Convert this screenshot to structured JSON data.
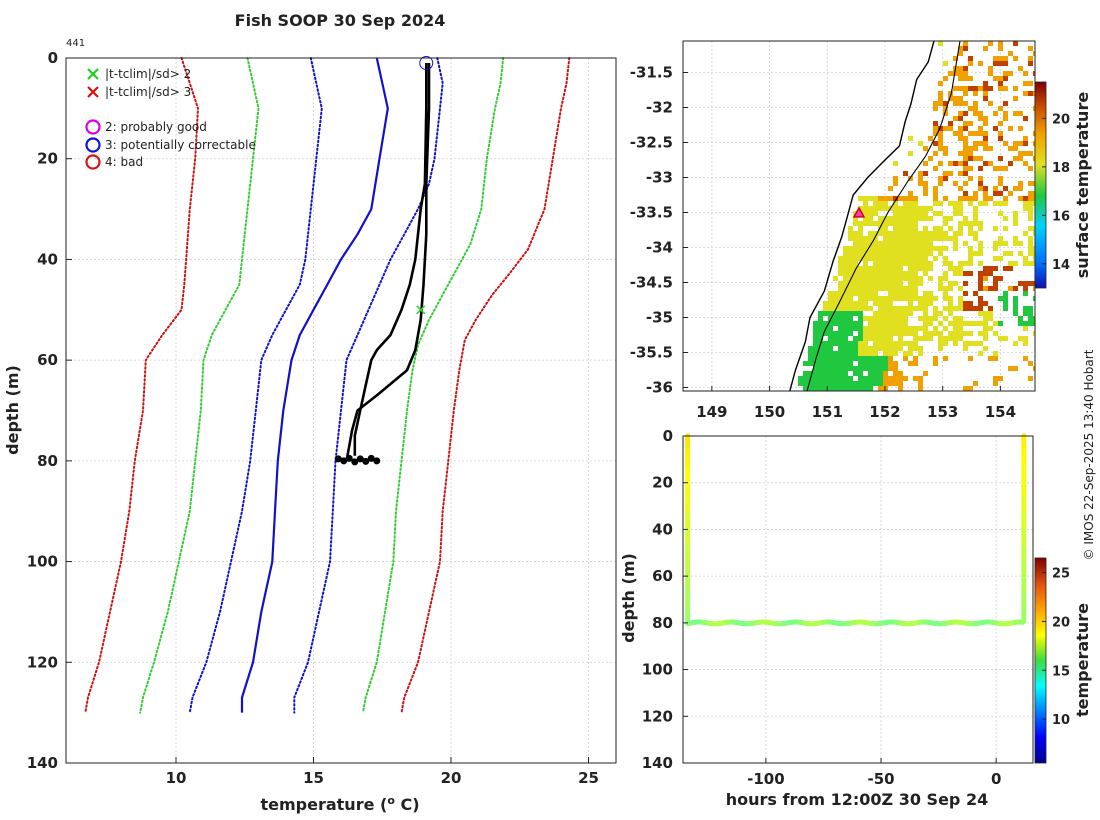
{
  "chart_data": [
    {
      "type": "line",
      "name": "profile",
      "title": "Fish SOOP 30 Sep 2024",
      "profile_id": "441",
      "xlabel": "temperature (",
      "xlabel_sup": "o",
      "xlabel_end": " C)",
      "ylabel": "depth (m)",
      "xlim": [
        6,
        26
      ],
      "ylim": [
        0,
        140
      ],
      "xticks": [
        10,
        15,
        20,
        25
      ],
      "yticks": [
        0,
        20,
        40,
        60,
        80,
        100,
        120,
        140
      ],
      "legend": [
        {
          "marker": "x",
          "color": "#22cc22",
          "label": "|t-tclim|/sd> 2"
        },
        {
          "marker": "x",
          "color": "#dd1111",
          "label": "|t-tclim|/sd> 3"
        },
        {
          "marker": "o",
          "color": "#dd00dd",
          "label": "2: probably good"
        },
        {
          "marker": "o",
          "color": "#1111dd",
          "label": "3: potentially correctable"
        },
        {
          "marker": "o",
          "color": "#dd1111",
          "label": "4: bad"
        }
      ],
      "series": [
        {
          "name": "clim-3sd-lo",
          "color": "#cc1111",
          "style": "dotted",
          "points": [
            [
              10.2,
              0
            ],
            [
              10.5,
              5
            ],
            [
              10.8,
              10
            ],
            [
              10.7,
              20
            ],
            [
              10.5,
              30
            ],
            [
              10.3,
              45
            ],
            [
              10.2,
              50
            ],
            [
              9.5,
              55
            ],
            [
              8.9,
              60
            ],
            [
              8.8,
              70
            ],
            [
              8.5,
              80
            ],
            [
              8.3,
              90
            ],
            [
              8,
              100
            ],
            [
              7.6,
              110
            ],
            [
              7.2,
              120
            ],
            [
              6.8,
              127
            ],
            [
              6.7,
              130
            ]
          ]
        },
        {
          "name": "clim-2sd-lo",
          "color": "#33cc33",
          "style": "dotted",
          "points": [
            [
              12.6,
              0
            ],
            [
              12.8,
              5
            ],
            [
              13,
              10
            ],
            [
              12.8,
              20
            ],
            [
              12.6,
              30
            ],
            [
              12.4,
              40
            ],
            [
              12.3,
              45
            ],
            [
              11.8,
              50
            ],
            [
              11.3,
              55
            ],
            [
              11,
              60
            ],
            [
              10.9,
              70
            ],
            [
              10.7,
              80
            ],
            [
              10.5,
              90
            ],
            [
              10.1,
              100
            ],
            [
              9.7,
              110
            ],
            [
              9.2,
              120
            ],
            [
              8.8,
              127
            ],
            [
              8.7,
              130
            ]
          ]
        },
        {
          "name": "clim-1sd-lo",
          "color": "#1111cc",
          "style": "dotted",
          "points": [
            [
              14.9,
              0
            ],
            [
              15.1,
              5
            ],
            [
              15.3,
              10
            ],
            [
              15.1,
              20
            ],
            [
              14.9,
              30
            ],
            [
              14.7,
              40
            ],
            [
              14.5,
              45
            ],
            [
              14,
              50
            ],
            [
              13.5,
              55
            ],
            [
              13.1,
              60
            ],
            [
              12.9,
              70
            ],
            [
              12.7,
              80
            ],
            [
              12.4,
              90
            ],
            [
              12,
              100
            ],
            [
              11.6,
              110
            ],
            [
              11.1,
              120
            ],
            [
              10.6,
              127
            ],
            [
              10.5,
              130
            ]
          ]
        },
        {
          "name": "clim-mean",
          "color": "#1111cc",
          "style": "solid",
          "points": [
            [
              17.3,
              0
            ],
            [
              17.5,
              5
            ],
            [
              17.7,
              10
            ],
            [
              17.4,
              20
            ],
            [
              17.1,
              30
            ],
            [
              16.6,
              35
            ],
            [
              16,
              40
            ],
            [
              15.5,
              45
            ],
            [
              15,
              50
            ],
            [
              14.5,
              55
            ],
            [
              14.2,
              60
            ],
            [
              13.9,
              70
            ],
            [
              13.7,
              80
            ],
            [
              13.6,
              90
            ],
            [
              13.5,
              100
            ],
            [
              13.1,
              110
            ],
            [
              12.8,
              120
            ],
            [
              12.4,
              127
            ],
            [
              12.4,
              130
            ]
          ]
        },
        {
          "name": "clim-1sd-hi",
          "color": "#1111cc",
          "style": "dotted",
          "points": [
            [
              19.5,
              0
            ],
            [
              19.7,
              5
            ],
            [
              19.6,
              10
            ],
            [
              19.4,
              20
            ],
            [
              19.2,
              25
            ],
            [
              18.8,
              30
            ],
            [
              18.3,
              35
            ],
            [
              17.8,
              40
            ],
            [
              17.4,
              45
            ],
            [
              17,
              50
            ],
            [
              16.6,
              55
            ],
            [
              16.2,
              60
            ],
            [
              16,
              70
            ],
            [
              15.8,
              80
            ],
            [
              15.7,
              90
            ],
            [
              15.6,
              100
            ],
            [
              15.2,
              110
            ],
            [
              14.8,
              120
            ],
            [
              14.3,
              127
            ],
            [
              14.3,
              130
            ]
          ]
        },
        {
          "name": "clim-2sd-hi",
          "color": "#33cc33",
          "style": "dotted",
          "points": [
            [
              21.9,
              0
            ],
            [
              21.8,
              5
            ],
            [
              21.6,
              10
            ],
            [
              21.3,
              20
            ],
            [
              21.1,
              30
            ],
            [
              20.7,
              37
            ],
            [
              20.2,
              42
            ],
            [
              19.7,
              47
            ],
            [
              19.2,
              52
            ],
            [
              18.8,
              57
            ],
            [
              18.6,
              62
            ],
            [
              18.4,
              70
            ],
            [
              18.2,
              80
            ],
            [
              18,
              90
            ],
            [
              17.9,
              100
            ],
            [
              17.6,
              110
            ],
            [
              17.3,
              120
            ],
            [
              16.9,
              127
            ],
            [
              16.8,
              130
            ]
          ]
        },
        {
          "name": "clim-3sd-hi",
          "color": "#cc1111",
          "style": "dotted",
          "points": [
            [
              24.3,
              0
            ],
            [
              24.2,
              5
            ],
            [
              24,
              10
            ],
            [
              23.7,
              20
            ],
            [
              23.4,
              30
            ],
            [
              22.8,
              38
            ],
            [
              22.1,
              43
            ],
            [
              21.5,
              47
            ],
            [
              20.9,
              52
            ],
            [
              20.5,
              56
            ],
            [
              20.3,
              62
            ],
            [
              20.1,
              70
            ],
            [
              19.9,
              80
            ],
            [
              19.7,
              90
            ],
            [
              19.6,
              100
            ],
            [
              19.2,
              110
            ],
            [
              18.8,
              120
            ],
            [
              18.3,
              127
            ],
            [
              18.2,
              130
            ]
          ]
        },
        {
          "name": "profile-down",
          "color": "#000000",
          "style": "solid",
          "points": [
            [
              19.1,
              1
            ],
            [
              19.1,
              10
            ],
            [
              19.05,
              25
            ],
            [
              18.9,
              30
            ],
            [
              18.8,
              35
            ],
            [
              18.7,
              40
            ],
            [
              18.5,
              45
            ],
            [
              18.2,
              50
            ],
            [
              17.8,
              55
            ],
            [
              17.3,
              58
            ],
            [
              17.1,
              60
            ],
            [
              16.9,
              65
            ],
            [
              16.7,
              70
            ],
            [
              16.5,
              75
            ],
            [
              16.5,
              79
            ]
          ]
        },
        {
          "name": "profile-up",
          "color": "#000000",
          "style": "solid",
          "points": [
            [
              16.2,
              80
            ],
            [
              16.3,
              77
            ],
            [
              16.4,
              74
            ],
            [
              16.6,
              70
            ],
            [
              17.3,
              67
            ],
            [
              18.4,
              62
            ],
            [
              18.7,
              58
            ],
            [
              18.9,
              52
            ],
            [
              19,
              45
            ],
            [
              19.1,
              35
            ],
            [
              19.1,
              25
            ],
            [
              19.2,
              10
            ],
            [
              19.2,
              1
            ]
          ]
        }
      ],
      "bottom_points": [
        [
          15.9,
          79.6
        ],
        [
          16.1,
          80
        ],
        [
          16.3,
          79.5
        ],
        [
          16.5,
          80.2
        ],
        [
          16.7,
          79.6
        ],
        [
          16.9,
          80.1
        ],
        [
          17.1,
          79.5
        ],
        [
          17.3,
          80
        ]
      ],
      "flag_points": [
        [
          18.9,
          50
        ]
      ],
      "start_marker": [
        19.1,
        1
      ]
    },
    {
      "type": "heatmap",
      "name": "surface-map",
      "colorbar_label": "surface temperature",
      "colorbar_ticks": [
        14,
        16,
        18,
        20
      ],
      "colorbar_range": [
        13,
        21.5
      ],
      "xlim": [
        148.5,
        154.6
      ],
      "ylim": [
        -36.05,
        -31.05
      ],
      "xticks": [
        149,
        150,
        151,
        152,
        153,
        154
      ],
      "yticks": [
        -31.5,
        -32,
        -32.5,
        -33,
        -33.5,
        -34,
        -34.5,
        -35,
        -35.5,
        -36
      ],
      "xtick_labels": [
        "149",
        "150",
        "151",
        "152",
        "153",
        "154"
      ],
      "ytick_labels": [
        "-31.5",
        "-32",
        "-32.5",
        "-33",
        "-33.5",
        "-34",
        "-34.5",
        "-35",
        "-35.5",
        "-36"
      ],
      "coastline": [
        [
          150.35,
          -36.05
        ],
        [
          150.45,
          -35.75
        ],
        [
          150.62,
          -35.35
        ],
        [
          150.7,
          -35.0
        ],
        [
          150.95,
          -34.62
        ],
        [
          151.1,
          -34.2
        ],
        [
          151.25,
          -33.85
        ],
        [
          151.35,
          -33.55
        ],
        [
          151.45,
          -33.25
        ],
        [
          151.7,
          -33.0
        ],
        [
          152.0,
          -32.75
        ],
        [
          152.25,
          -32.55
        ],
        [
          152.35,
          -32.2
        ],
        [
          152.45,
          -31.95
        ],
        [
          152.55,
          -31.6
        ],
        [
          152.75,
          -31.35
        ],
        [
          152.85,
          -31.05
        ]
      ],
      "shelf_contour": [
        [
          150.65,
          -36.05
        ],
        [
          150.8,
          -35.6
        ],
        [
          150.95,
          -35.2
        ],
        [
          151.2,
          -34.8
        ],
        [
          151.5,
          -34.3
        ],
        [
          151.8,
          -33.9
        ],
        [
          152.05,
          -33.5
        ],
        [
          152.4,
          -33.05
        ],
        [
          152.7,
          -32.7
        ],
        [
          152.95,
          -32.3
        ],
        [
          153.15,
          -31.8
        ],
        [
          153.3,
          -31.05
        ]
      ],
      "ship_marker": [
        151.55,
        -33.52
      ]
    },
    {
      "type": "scatter",
      "name": "section",
      "xlabel": "hours from 12:00Z 30 Sep 24",
      "ylabel": "depth (m)",
      "colorbar_label": "temperature",
      "colorbar_ticks": [
        10,
        15,
        20,
        25
      ],
      "colorbar_range": [
        5.5,
        26.5
      ],
      "xlim": [
        -136,
        16
      ],
      "ylim": [
        0,
        140
      ],
      "xticks": [
        -100,
        -50,
        0
      ],
      "yticks": [
        0,
        20,
        40,
        60,
        80,
        100,
        120,
        140
      ],
      "casts": [
        {
          "x": -134,
          "from": 0,
          "to": 80,
          "temp_top": 19.2,
          "temp_bottom": 16.5
        },
        {
          "x": 12,
          "from": 0,
          "to": 80,
          "temp_top": 19.0,
          "temp_bottom": 16.5
        }
      ],
      "bottom_line": {
        "x_start": -134,
        "x_end": 12,
        "depth": 80,
        "temp": 16.5
      }
    }
  ],
  "credit": "© IMOS 22-Sep-2025 13:40 Hobart"
}
